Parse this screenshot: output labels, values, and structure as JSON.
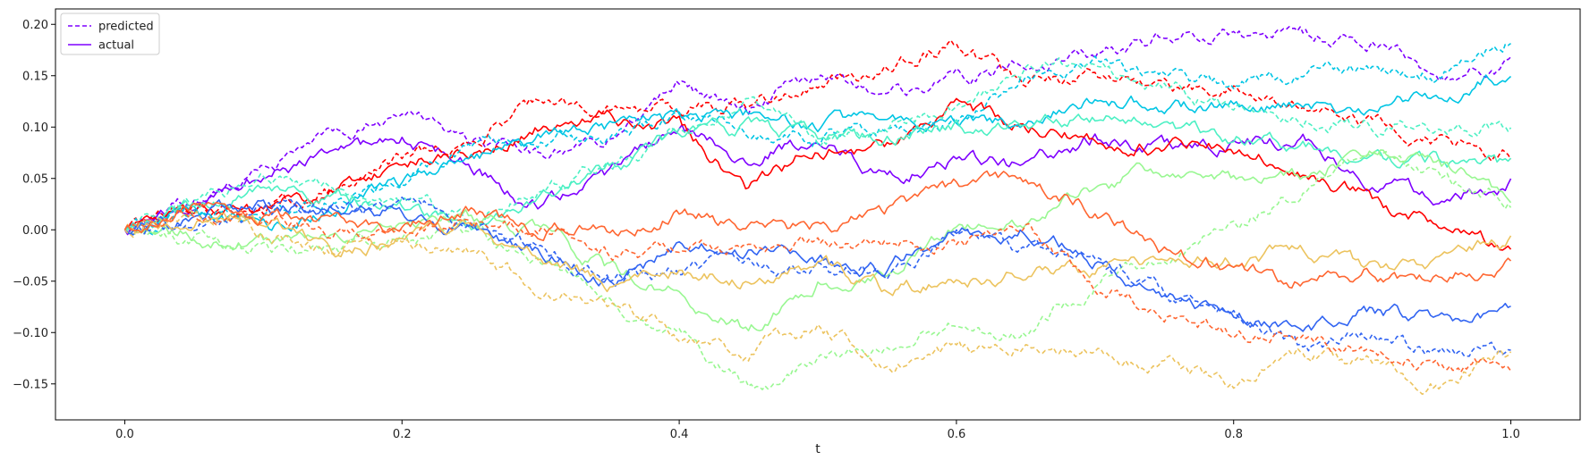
{
  "chart_data": {
    "type": "line",
    "title": "",
    "xlabel": "t",
    "ylabel": "",
    "xlim": [
      -0.05,
      1.05
    ],
    "ylim": [
      -0.185,
      0.215
    ],
    "x_ticks": [
      0.0,
      0.2,
      0.4,
      0.6,
      0.8,
      1.0
    ],
    "x_tick_labels": [
      "0.0",
      "0.2",
      "0.4",
      "0.6",
      "0.8",
      "1.0"
    ],
    "y_ticks": [
      -0.15,
      -0.1,
      -0.05,
      0.0,
      0.05,
      0.1,
      0.15,
      0.2
    ],
    "y_tick_labels": [
      "−0.15",
      "−0.10",
      "−0.05",
      "0.00",
      "0.05",
      "0.10",
      "0.15",
      "0.20"
    ],
    "grid": false,
    "legend": {
      "position": "top-left",
      "entries": [
        {
          "label": "predicted",
          "style": "dashed",
          "color": "#7f00ff"
        },
        {
          "label": "actual",
          "style": "solid",
          "color": "#7f00ff"
        }
      ]
    },
    "x": [
      0.0,
      0.05,
      0.1,
      0.15,
      0.2,
      0.25,
      0.3,
      0.35,
      0.4,
      0.45,
      0.5,
      0.55,
      0.6,
      0.65,
      0.7,
      0.75,
      0.8,
      0.85,
      0.9,
      0.95,
      1.0
    ],
    "series": [
      {
        "color": "#7f00ff",
        "style": "dashed",
        "values": [
          0.0,
          0.03,
          0.06,
          0.09,
          0.11,
          0.09,
          0.07,
          0.09,
          0.14,
          0.12,
          0.15,
          0.13,
          0.15,
          0.16,
          0.17,
          0.19,
          0.19,
          0.19,
          0.18,
          0.15,
          0.16
        ]
      },
      {
        "color": "#7f00ff",
        "style": "solid",
        "values": [
          0.0,
          0.025,
          0.05,
          0.07,
          0.09,
          0.06,
          0.02,
          0.05,
          0.1,
          0.07,
          0.09,
          0.05,
          0.07,
          0.06,
          0.09,
          0.08,
          0.08,
          0.09,
          0.05,
          0.03,
          0.045
        ]
      },
      {
        "color": "#ff0000",
        "style": "dashed",
        "values": [
          0.0,
          0.02,
          0.02,
          0.04,
          0.07,
          0.08,
          0.13,
          0.12,
          0.12,
          0.12,
          0.14,
          0.16,
          0.18,
          0.14,
          0.15,
          0.14,
          0.14,
          0.12,
          0.1,
          0.09,
          0.07
        ]
      },
      {
        "color": "#ff0000",
        "style": "solid",
        "values": [
          0.0,
          0.02,
          0.02,
          0.035,
          0.065,
          0.08,
          0.1,
          0.11,
          0.1,
          0.04,
          0.08,
          0.08,
          0.12,
          0.1,
          0.09,
          0.08,
          0.08,
          0.06,
          0.03,
          0.0,
          -0.02
        ]
      },
      {
        "color": "#00c5e4",
        "style": "dashed",
        "values": [
          0.0,
          0.02,
          0.01,
          0.03,
          0.05,
          0.08,
          0.09,
          0.09,
          0.11,
          0.1,
          0.09,
          0.1,
          0.1,
          0.15,
          0.16,
          0.15,
          0.14,
          0.15,
          0.16,
          0.15,
          0.185
        ]
      },
      {
        "color": "#00c5e4",
        "style": "solid",
        "values": [
          0.0,
          0.02,
          0.0,
          0.02,
          0.045,
          0.07,
          0.09,
          0.1,
          0.11,
          0.11,
          0.1,
          0.11,
          0.1,
          0.11,
          0.13,
          0.12,
          0.12,
          0.12,
          0.12,
          0.13,
          0.15
        ]
      },
      {
        "color": "#4df0c4",
        "style": "dashed",
        "values": [
          0.0,
          0.025,
          0.05,
          0.04,
          0.03,
          0.01,
          0.04,
          0.06,
          0.1,
          0.12,
          0.09,
          0.1,
          0.12,
          0.15,
          0.16,
          0.14,
          0.12,
          0.11,
          0.1,
          0.1,
          0.1
        ]
      },
      {
        "color": "#4df0c4",
        "style": "solid",
        "values": [
          0.0,
          0.02,
          0.04,
          0.03,
          0.02,
          0.0,
          0.03,
          0.06,
          0.09,
          0.1,
          0.09,
          0.09,
          0.1,
          0.1,
          0.11,
          0.1,
          0.09,
          0.08,
          0.07,
          0.065,
          0.06
        ]
      },
      {
        "color": "#99f792",
        "style": "dashed",
        "values": [
          0.0,
          -0.01,
          -0.02,
          -0.02,
          -0.01,
          0.0,
          -0.03,
          -0.07,
          -0.1,
          -0.15,
          -0.13,
          -0.12,
          -0.09,
          -0.1,
          -0.05,
          -0.03,
          0.0,
          0.04,
          0.08,
          0.05,
          0.03
        ]
      },
      {
        "color": "#99f792",
        "style": "solid",
        "values": [
          0.0,
          -0.005,
          -0.015,
          -0.005,
          0.0,
          0.01,
          0.0,
          -0.04,
          -0.06,
          -0.1,
          -0.05,
          -0.04,
          0.0,
          0.0,
          0.04,
          0.06,
          0.05,
          0.05,
          0.08,
          0.06,
          0.03
        ]
      },
      {
        "color": "#3164f2",
        "style": "dashed",
        "values": [
          0.0,
          0.01,
          0.02,
          0.02,
          0.025,
          0.01,
          -0.02,
          -0.05,
          -0.04,
          -0.03,
          -0.04,
          -0.04,
          0.0,
          -0.02,
          -0.03,
          -0.06,
          -0.08,
          -0.12,
          -0.1,
          -0.12,
          -0.115
        ]
      },
      {
        "color": "#3164f2",
        "style": "solid",
        "values": [
          0.0,
          0.015,
          0.02,
          0.02,
          0.02,
          0.0,
          -0.02,
          -0.05,
          -0.02,
          -0.02,
          -0.03,
          -0.04,
          0.0,
          0.0,
          -0.03,
          -0.07,
          -0.08,
          -0.1,
          -0.08,
          -0.09,
          -0.075
        ]
      },
      {
        "color": "#ecc35e",
        "style": "dashed",
        "values": [
          0.0,
          0.02,
          0.0,
          -0.02,
          -0.01,
          -0.02,
          -0.06,
          -0.07,
          -0.1,
          -0.12,
          -0.09,
          -0.13,
          -0.12,
          -0.11,
          -0.12,
          -0.13,
          -0.15,
          -0.12,
          -0.13,
          -0.15,
          -0.12
        ]
      },
      {
        "color": "#ecc35e",
        "style": "solid",
        "values": [
          0.0,
          0.01,
          0.01,
          -0.02,
          -0.01,
          0.0,
          -0.03,
          -0.05,
          -0.04,
          -0.05,
          -0.03,
          -0.06,
          -0.05,
          -0.04,
          -0.04,
          -0.03,
          -0.03,
          -0.02,
          -0.04,
          -0.03,
          -0.01
        ]
      },
      {
        "color": "#ff6631",
        "style": "dashed",
        "values": [
          0.0,
          0.02,
          0.01,
          0.0,
          0.0,
          0.01,
          0.0,
          -0.02,
          -0.02,
          -0.02,
          -0.01,
          -0.01,
          -0.01,
          0.0,
          -0.05,
          -0.08,
          -0.1,
          -0.11,
          -0.12,
          -0.13,
          -0.13
        ]
      },
      {
        "color": "#ff6631",
        "style": "solid",
        "values": [
          0.0,
          0.025,
          0.01,
          0.01,
          0.0,
          0.02,
          0.0,
          0.0,
          0.02,
          0.0,
          0.0,
          0.02,
          0.04,
          0.05,
          0.02,
          -0.02,
          -0.04,
          -0.05,
          -0.04,
          -0.05,
          -0.03
        ]
      }
    ]
  }
}
